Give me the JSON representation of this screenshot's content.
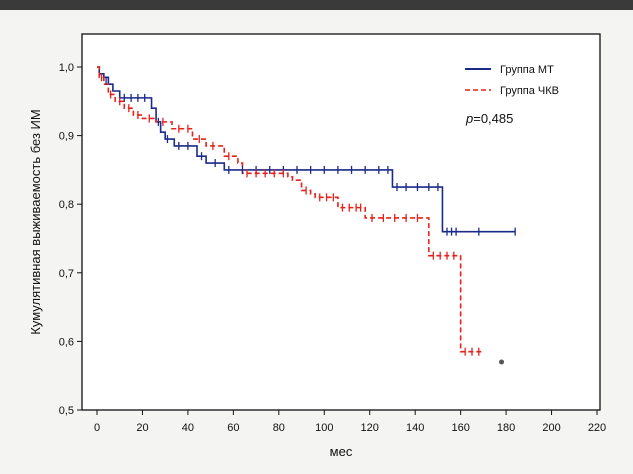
{
  "chart_data": {
    "type": "line",
    "subtype": "kaplan-meier",
    "xlabel": "мес",
    "ylabel": "Кумулятивная выживаемость без ИМ",
    "xlim": [
      -5,
      220
    ],
    "ylim": [
      0.5,
      1.05
    ],
    "x_ticks": [
      0,
      20,
      40,
      60,
      80,
      100,
      120,
      140,
      160,
      180,
      200,
      220
    ],
    "y_ticks": [
      0.5,
      0.6,
      0.7,
      0.8,
      0.9,
      1.0
    ],
    "y_tick_labels": [
      "0,5",
      "0,6",
      "0,7",
      "0,8",
      "0,9",
      "1,0"
    ],
    "grid": false,
    "legend_position": "top-right",
    "annotation": "p=0,485",
    "annotation_italic_part": "p",
    "annotation_rest": "=0,485",
    "series": [
      {
        "name": "Группа МТ",
        "color": "#1a2a8a",
        "dash": "solid",
        "steps": [
          [
            0,
            1.0
          ],
          [
            1,
            0.99
          ],
          [
            3,
            0.985
          ],
          [
            5,
            0.975
          ],
          [
            7,
            0.965
          ],
          [
            10,
            0.955
          ],
          [
            24,
            0.94
          ],
          [
            26,
            0.92
          ],
          [
            28,
            0.905
          ],
          [
            30,
            0.895
          ],
          [
            34,
            0.885
          ],
          [
            44,
            0.87
          ],
          [
            48,
            0.86
          ],
          [
            56,
            0.85
          ],
          [
            130,
            0.825
          ],
          [
            152,
            0.76
          ],
          [
            184,
            0.76
          ]
        ],
        "censors": [
          [
            4,
            0.98
          ],
          [
            12,
            0.955
          ],
          [
            15,
            0.955
          ],
          [
            18,
            0.955
          ],
          [
            21,
            0.955
          ],
          [
            27,
            0.92
          ],
          [
            31,
            0.895
          ],
          [
            36,
            0.885
          ],
          [
            40,
            0.885
          ],
          [
            46,
            0.87
          ],
          [
            52,
            0.86
          ],
          [
            58,
            0.85
          ],
          [
            64,
            0.85
          ],
          [
            70,
            0.85
          ],
          [
            76,
            0.85
          ],
          [
            82,
            0.85
          ],
          [
            88,
            0.85
          ],
          [
            94,
            0.85
          ],
          [
            100,
            0.85
          ],
          [
            106,
            0.85
          ],
          [
            112,
            0.85
          ],
          [
            118,
            0.85
          ],
          [
            124,
            0.85
          ],
          [
            128,
            0.85
          ],
          [
            132,
            0.825
          ],
          [
            136,
            0.825
          ],
          [
            141,
            0.825
          ],
          [
            146,
            0.825
          ],
          [
            150,
            0.825
          ],
          [
            154,
            0.76
          ],
          [
            156,
            0.76
          ],
          [
            158,
            0.76
          ],
          [
            168,
            0.76
          ],
          [
            184,
            0.76
          ]
        ]
      },
      {
        "name": "Группа ЧКВ",
        "color": "#e8201a",
        "dash": "dashed",
        "steps": [
          [
            0,
            1.0
          ],
          [
            1,
            0.985
          ],
          [
            3,
            0.975
          ],
          [
            5,
            0.96
          ],
          [
            8,
            0.95
          ],
          [
            12,
            0.94
          ],
          [
            16,
            0.93
          ],
          [
            20,
            0.925
          ],
          [
            26,
            0.92
          ],
          [
            33,
            0.91
          ],
          [
            42,
            0.895
          ],
          [
            48,
            0.885
          ],
          [
            56,
            0.87
          ],
          [
            62,
            0.86
          ],
          [
            64,
            0.845
          ],
          [
            84,
            0.84
          ],
          [
            86,
            0.835
          ],
          [
            90,
            0.82
          ],
          [
            94,
            0.815
          ],
          [
            96,
            0.81
          ],
          [
            106,
            0.795
          ],
          [
            118,
            0.78
          ],
          [
            146,
            0.725
          ],
          [
            160,
            0.585
          ],
          [
            170,
            0.585
          ]
        ],
        "censors": [
          [
            2,
            0.985
          ],
          [
            6,
            0.96
          ],
          [
            10,
            0.95
          ],
          [
            14,
            0.94
          ],
          [
            18,
            0.93
          ],
          [
            23,
            0.925
          ],
          [
            29,
            0.92
          ],
          [
            36,
            0.91
          ],
          [
            40,
            0.91
          ],
          [
            45,
            0.895
          ],
          [
            51,
            0.885
          ],
          [
            58,
            0.87
          ],
          [
            66,
            0.845
          ],
          [
            70,
            0.845
          ],
          [
            74,
            0.845
          ],
          [
            78,
            0.845
          ],
          [
            82,
            0.845
          ],
          [
            92,
            0.82
          ],
          [
            98,
            0.81
          ],
          [
            101,
            0.81
          ],
          [
            104,
            0.81
          ],
          [
            108,
            0.795
          ],
          [
            111,
            0.795
          ],
          [
            114,
            0.795
          ],
          [
            116,
            0.795
          ],
          [
            121,
            0.78
          ],
          [
            126,
            0.78
          ],
          [
            131,
            0.78
          ],
          [
            136,
            0.78
          ],
          [
            141,
            0.78
          ],
          [
            148,
            0.725
          ],
          [
            151,
            0.725
          ],
          [
            154,
            0.725
          ],
          [
            157,
            0.725
          ],
          [
            162,
            0.585
          ],
          [
            165,
            0.585
          ],
          [
            168,
            0.585
          ]
        ]
      }
    ],
    "extra_points": [
      {
        "x": 178,
        "y": 0.57,
        "color": "#555555"
      }
    ]
  }
}
